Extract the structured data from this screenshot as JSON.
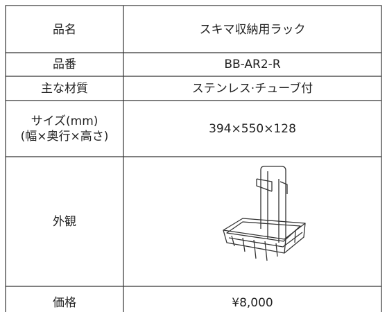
{
  "table": {
    "rows": [
      {
        "label": [
          "品名"
        ],
        "value": "スキマ収納用ラック"
      },
      {
        "label": [
          "品番"
        ],
        "value": "BB-AR2-R"
      },
      {
        "label": [
          "主な材質"
        ],
        "value": "ステンレス·チューブ付"
      },
      {
        "label": [
          "サイズ(mm)",
          "(幅×奥行×高さ)"
        ],
        "value": "394×550×128"
      },
      {
        "label": [
          "外観"
        ]
      },
      {
        "label": [
          "価格"
        ],
        "value": "¥8,000"
      }
    ]
  }
}
